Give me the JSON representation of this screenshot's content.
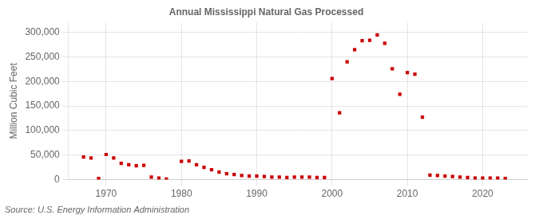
{
  "chart_data": {
    "type": "scatter",
    "title": "Annual Mississippi Natural Gas Processed",
    "ylabel": "Million Cubic Feet",
    "annotation": "Source: U.S. Energy Information Administration",
    "color": "#cc0000",
    "marker": "square",
    "grid": true,
    "xlim": [
      1965,
      2026
    ],
    "ylim": [
      0,
      320000
    ],
    "xticks": [
      1970,
      1980,
      1990,
      2000,
      2010,
      2020
    ],
    "yticks": [
      0,
      {
        "value": 50000,
        "label": "50,000"
      },
      {
        "value": 100000,
        "label": "100,000"
      },
      {
        "value": 150000,
        "label": "150,000"
      },
      {
        "value": 200000,
        "label": "200,000"
      },
      {
        "value": 250000,
        "label": "250,000"
      },
      {
        "value": 300000,
        "label": "300,000"
      }
    ],
    "x": [
      1967,
      1968,
      1969,
      1970,
      1971,
      1972,
      1973,
      1974,
      1975,
      1976,
      1977,
      1978,
      1980,
      1981,
      1982,
      1983,
      1984,
      1985,
      1986,
      1987,
      1988,
      1989,
      1990,
      1991,
      1992,
      1993,
      1994,
      1995,
      1996,
      1997,
      1998,
      1999,
      2000,
      2001,
      2002,
      2003,
      2004,
      2005,
      2006,
      2007,
      2008,
      2009,
      2010,
      2011,
      2012,
      2013,
      2014,
      2015,
      2016,
      2017,
      2018,
      2019,
      2020,
      2021,
      2022,
      2023
    ],
    "values": [
      46000,
      44000,
      2000,
      51000,
      44000,
      33000,
      30000,
      28000,
      29000,
      5000,
      3000,
      1000,
      37000,
      38000,
      30000,
      25000,
      20000,
      15000,
      12000,
      10000,
      8000,
      7000,
      7000,
      6000,
      5000,
      5000,
      4000,
      5000,
      5000,
      5000,
      4000,
      4000,
      206000,
      136000,
      240000,
      265000,
      283000,
      284000,
      295000,
      278000,
      226000,
      174000,
      218000,
      215000,
      127000,
      9000,
      8000,
      7000,
      6000,
      5000,
      4000,
      3000,
      3000,
      3000,
      3000,
      2000
    ]
  }
}
